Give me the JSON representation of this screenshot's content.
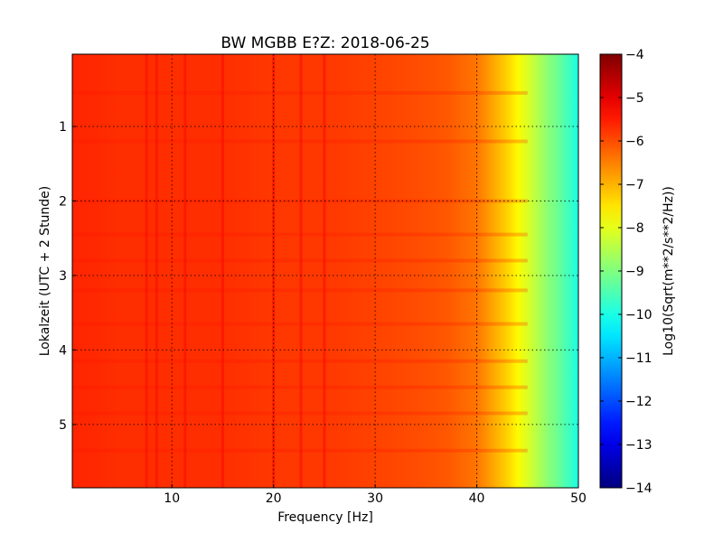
{
  "chart_data": {
    "type": "heatmap",
    "title": "BW MGBB E?Z: 2018-06-25",
    "xlabel": "Frequency [Hz]",
    "ylabel": "Lokalzeit (UTC + 2 Stunde)",
    "xlim": [
      0.2,
      50
    ],
    "ylim": [
      5.85,
      0.03
    ],
    "x_ticks": [
      10,
      20,
      30,
      40,
      50
    ],
    "x_tick_labels": [
      "10",
      "20",
      "30",
      "40",
      "50"
    ],
    "y_ticks": [
      1,
      2,
      3,
      4,
      5
    ],
    "y_tick_labels": [
      "1",
      "2",
      "3",
      "4",
      "5"
    ],
    "grid": true,
    "colormap": "jet",
    "colorbar": {
      "label": "Log10(Sqrt(m**2/s**2/Hz))",
      "vmin": -14,
      "vmax": -4,
      "ticks": [
        -4,
        -5,
        -6,
        -7,
        -8,
        -9,
        -10,
        -11,
        -12,
        -13,
        -14
      ],
      "tick_labels": [
        "−4",
        "−5",
        "−6",
        "−7",
        "−8",
        "−9",
        "−10",
        "−11",
        "−12",
        "−13",
        "−14"
      ]
    },
    "spectrum_profile": {
      "frequency_hz": [
        0.2,
        5,
        10,
        15,
        20,
        25,
        30,
        34,
        37,
        39,
        40,
        41,
        42,
        43,
        44,
        45,
        46,
        47,
        48,
        49,
        50
      ],
      "log_amplitude": [
        -5.6,
        -5.7,
        -5.7,
        -5.7,
        -5.8,
        -5.8,
        -5.9,
        -6.0,
        -6.1,
        -6.3,
        -6.4,
        -6.7,
        -7.0,
        -7.3,
        -7.7,
        -8.1,
        -8.5,
        -8.9,
        -9.2,
        -9.6,
        -10.0
      ]
    },
    "persistent_lines_hz": [
      7.5,
      8.5,
      11.3,
      15.0,
      20.0,
      22.7,
      25.0
    ],
    "time_bands_h": [
      0.55,
      1.2,
      2.0,
      2.45,
      2.8,
      3.2,
      3.65,
      4.15,
      4.5,
      4.85,
      5.35
    ]
  }
}
